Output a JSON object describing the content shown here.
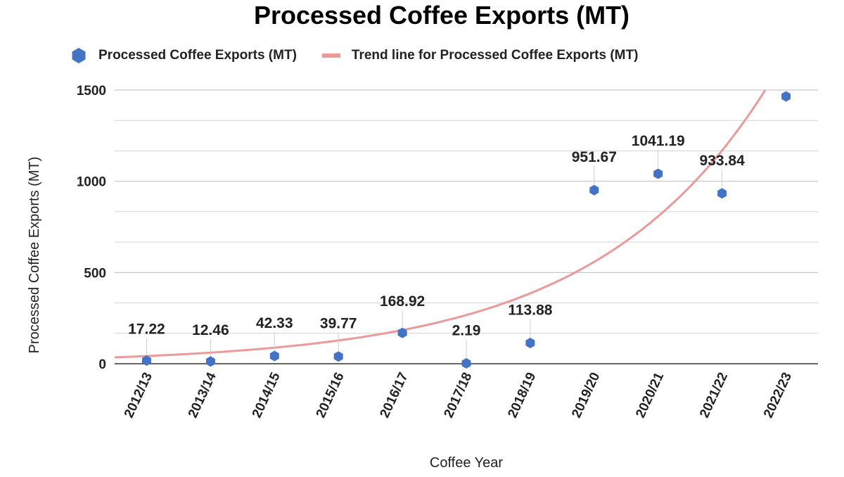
{
  "chart_data": {
    "type": "scatter",
    "title": "Processed Coffee Exports (MT)",
    "xlabel": "Coffee Year",
    "ylabel": "Processed Coffee Exports (MT)",
    "ylim": [
      0,
      1500
    ],
    "y_ticks": [
      "0",
      "500",
      "1000",
      "1500"
    ],
    "grid": true,
    "legend_position": "top",
    "categories": [
      "2012/13",
      "2013/14",
      "2014/15",
      "2015/16",
      "2016/17",
      "2017/18",
      "2018/19",
      "2019/20",
      "2020/21",
      "2021/22",
      "2022/23"
    ],
    "series": [
      {
        "name": "Processed Coffee Exports (MT)",
        "color": "#4472c4",
        "marker": "hexagon",
        "values": [
          17.22,
          12.46,
          42.33,
          39.77,
          168.92,
          2.19,
          113.88,
          951.67,
          1041.19,
          933.84,
          1465
        ],
        "labels": [
          "17.22",
          "12.46",
          "42.33",
          "39.77",
          "168.92",
          "2.19",
          "113.88",
          "951.67",
          "1041.19",
          "933.84",
          ""
        ]
      }
    ],
    "trendline": {
      "name": "Trend line for Processed Coffee Exports (MT)",
      "type": "exponential",
      "color": "#ee9999",
      "start_value": 35,
      "end_value": 1500
    }
  }
}
